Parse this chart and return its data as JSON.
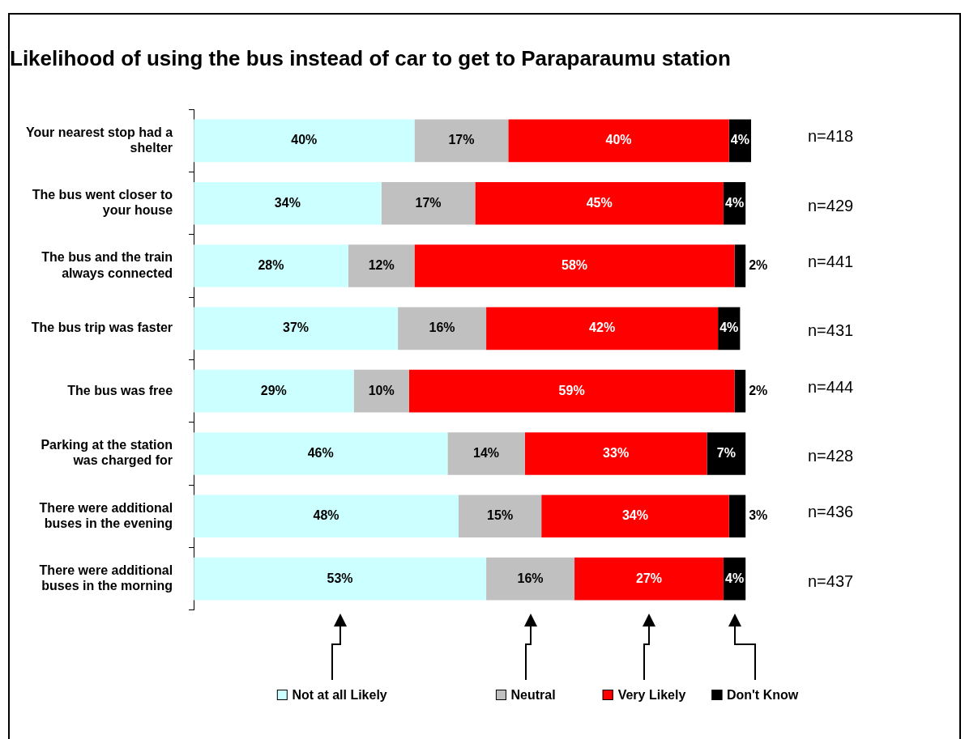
{
  "chart_data": {
    "type": "bar",
    "orientation": "horizontal",
    "stacked": true,
    "legend": "bottom",
    "title": "Likelihood of using the bus instead of car to get to Paraparaumu station",
    "categories": [
      "Your nearest stop had a shelter",
      "The bus went closer to your house",
      "The bus and the train always connected",
      "The bus trip was faster",
      "The bus was free",
      "Parking at the station was charged for",
      "There were additional buses in the evening",
      "There were additional buses in the morning"
    ],
    "series": [
      {
        "name": "Not at all Likely",
        "color": "#ccffff",
        "values": [
          40,
          34,
          28,
          37,
          29,
          46,
          48,
          53
        ],
        "value_labels": [
          "40%",
          "34%",
          "28%",
          "37%",
          "29%",
          "46%",
          "48%",
          "53%"
        ]
      },
      {
        "name": "Neutral",
        "color": "#c0c0c0",
        "values": [
          17,
          17,
          12,
          16,
          10,
          14,
          15,
          16
        ],
        "value_labels": [
          "17%",
          "17%",
          "12%",
          "16%",
          "10%",
          "14%",
          "15%",
          "16%"
        ]
      },
      {
        "name": "Very Likely",
        "color": "#ff0000",
        "values": [
          40,
          45,
          58,
          42,
          59,
          33,
          34,
          27
        ],
        "value_labels": [
          "40%",
          "45%",
          "58%",
          "42%",
          "59%",
          "33%",
          "34%",
          "27%"
        ]
      },
      {
        "name": "Don't Know",
        "color": "#000000",
        "values": [
          4,
          4,
          2,
          4,
          2,
          7,
          3,
          4
        ],
        "value_labels": [
          "4%",
          "4%",
          "2%",
          "4%",
          "2%",
          "7%",
          "3%",
          "4%"
        ]
      }
    ],
    "annotations": [
      "n=418",
      "n=429",
      "n=441",
      "n=431",
      "n=444",
      "n=428",
      "n=436",
      "n=437"
    ]
  }
}
